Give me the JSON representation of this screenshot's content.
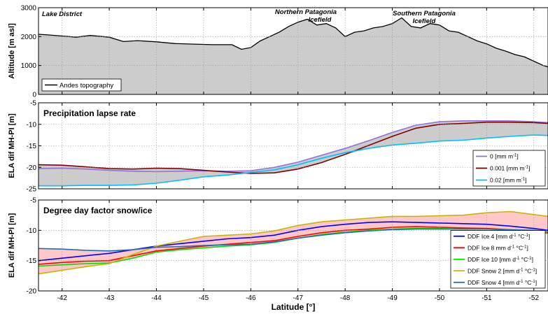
{
  "chart_data": [
    {
      "type": "area",
      "ylabel": "Altitude [m asl]",
      "xlim": [
        -41.5,
        -52.3
      ],
      "ylim": [
        0,
        3000
      ],
      "yticks": [
        "0",
        "1000",
        "2000",
        "3000"
      ],
      "grid": true,
      "legend_position": "bottom-left",
      "annotations": [
        "Lake District",
        "Northern Patagonia",
        "Icefield",
        "Southern Patagonia",
        "Icefield"
      ],
      "series": [
        {
          "name": "Andes topography",
          "color": "#000000",
          "fill": "#cccccc",
          "x": [
            -41.5,
            -41.7,
            -42.0,
            -42.3,
            -42.6,
            -43.0,
            -43.3,
            -43.6,
            -44.0,
            -44.4,
            -44.8,
            -45.2,
            -45.6,
            -45.8,
            -46.0,
            -46.2,
            -46.4,
            -46.6,
            -46.8,
            -47.0,
            -47.2,
            -47.4,
            -47.6,
            -47.8,
            -48.0,
            -48.2,
            -48.4,
            -48.6,
            -48.8,
            -49.0,
            -49.2,
            -49.4,
            -49.6,
            -49.8,
            -50.0,
            -50.2,
            -50.4,
            -50.6,
            -50.8,
            -51.0,
            -51.2,
            -51.4,
            -51.6,
            -51.8,
            -52.0,
            -52.2,
            -52.3
          ],
          "values": [
            2080,
            2060,
            2020,
            1980,
            2040,
            1980,
            1830,
            1860,
            1820,
            1760,
            1740,
            1720,
            1720,
            1560,
            1620,
            1850,
            2000,
            2150,
            2350,
            2500,
            2600,
            2400,
            2450,
            2300,
            2000,
            2150,
            2200,
            2300,
            2350,
            2450,
            2650,
            2350,
            2300,
            2450,
            2400,
            2200,
            2150,
            2000,
            1850,
            1750,
            1600,
            1500,
            1380,
            1300,
            1150,
            1000,
            950
          ]
        }
      ]
    },
    {
      "type": "line",
      "title": "Precipitation lapse rate",
      "ylabel": "ELA dif MH-PI [m]",
      "xlim": [
        -41.5,
        -52.3
      ],
      "ylim": [
        -25,
        -5
      ],
      "yticks": [
        "-25",
        "-20",
        "-15",
        "-10",
        "-5"
      ],
      "grid": true,
      "legend_position": "bottom-right",
      "envelope_fill": "#cccccc",
      "series": [
        {
          "name": "0 [mm m",
          "unit_sup": "-1",
          "unit_end": "]",
          "color": "#9370db",
          "x": [
            -41.5,
            -42.0,
            -42.5,
            -43.0,
            -43.5,
            -44.0,
            -44.5,
            -45.0,
            -45.5,
            -46.0,
            -46.5,
            -47.0,
            -47.5,
            -48.0,
            -48.5,
            -49.0,
            -49.5,
            -50.0,
            -50.5,
            -51.0,
            -51.5,
            -52.0,
            -52.3
          ],
          "values": [
            -20.3,
            -20.2,
            -20.4,
            -20.7,
            -20.9,
            -21.0,
            -20.9,
            -20.8,
            -20.9,
            -20.8,
            -20.0,
            -18.8,
            -17.2,
            -15.6,
            -13.8,
            -11.9,
            -10.2,
            -9.4,
            -9.2,
            -9.2,
            -9.2,
            -9.4,
            -9.6
          ]
        },
        {
          "name": "0.001 [mm m",
          "unit_sup": "-1",
          "unit_end": "]",
          "color": "#800000",
          "x": [
            -41.5,
            -42.0,
            -42.5,
            -43.0,
            -43.5,
            -44.0,
            -44.5,
            -45.0,
            -45.5,
            -46.0,
            -46.5,
            -47.0,
            -47.5,
            -48.0,
            -48.5,
            -49.0,
            -49.5,
            -50.0,
            -50.5,
            -51.0,
            -51.5,
            -52.0,
            -52.3
          ],
          "values": [
            -19.4,
            -19.5,
            -19.9,
            -20.3,
            -20.4,
            -20.2,
            -20.3,
            -20.7,
            -21.1,
            -21.4,
            -21.3,
            -20.4,
            -18.9,
            -17.0,
            -14.9,
            -12.8,
            -10.9,
            -10.0,
            -9.8,
            -9.5,
            -9.5,
            -9.6,
            -9.8
          ]
        },
        {
          "name": "0.02 [mm m",
          "unit_sup": "-1",
          "unit_end": "]",
          "color": "#00bfff",
          "x": [
            -41.5,
            -42.0,
            -42.5,
            -43.0,
            -43.5,
            -44.0,
            -44.5,
            -45.0,
            -45.5,
            -46.0,
            -46.5,
            -47.0,
            -47.5,
            -48.0,
            -48.5,
            -49.0,
            -49.5,
            -50.0,
            -50.5,
            -51.0,
            -51.5,
            -52.0,
            -52.3
          ],
          "values": [
            -24.3,
            -24.3,
            -24.2,
            -24.2,
            -24.1,
            -23.7,
            -23.0,
            -22.2,
            -21.8,
            -21.2,
            -20.6,
            -19.4,
            -17.9,
            -16.6,
            -15.6,
            -14.8,
            -14.4,
            -13.9,
            -13.7,
            -13.2,
            -12.8,
            -12.5,
            -12.6
          ]
        }
      ]
    },
    {
      "type": "line",
      "title": "Degree day factor snow/ice",
      "ylabel": "ELA dif MH-PI [m]",
      "xlabel": "Latitude [°]",
      "xlim": [
        -41.5,
        -52.3
      ],
      "ylim": [
        -20,
        -5
      ],
      "yticks": [
        "-20",
        "-15",
        "-10",
        "-5"
      ],
      "xticks": [
        -42,
        -43,
        -44,
        -45,
        -46,
        -47,
        -48,
        -49,
        -50,
        -51,
        -52
      ],
      "xtick_labels": [
        "-42",
        "-43",
        "-44",
        "-45",
        "-46",
        "-47",
        "-48",
        "-49",
        "-50",
        "-51",
        "-52"
      ],
      "grid": true,
      "legend_position": "bottom-right",
      "envelope_fill": "#ffc8c8",
      "series": [
        {
          "name": "DDF Ice 4 [mm d",
          "unit_sup": "-1",
          "unit_mid": " °C",
          "unit_sup2": "-1",
          "unit_end": "]",
          "color": "#0000ff",
          "x": [
            -41.5,
            -42.0,
            -42.5,
            -43.0,
            -43.5,
            -44.0,
            -44.5,
            -45.0,
            -45.5,
            -46.0,
            -46.5,
            -47.0,
            -47.5,
            -48.0,
            -48.5,
            -49.0,
            -49.5,
            -50.0,
            -50.5,
            -51.0,
            -51.5,
            -52.0,
            -52.3
          ],
          "values": [
            -15.0,
            -14.6,
            -14.2,
            -13.8,
            -13.2,
            -12.6,
            -12.2,
            -11.8,
            -11.4,
            -11.2,
            -10.8,
            -10.0,
            -9.4,
            -9.0,
            -8.7,
            -8.6,
            -8.7,
            -8.8,
            -8.9,
            -9.0,
            -9.3,
            -9.7,
            -10.0
          ]
        },
        {
          "name": "DDF Ice 8 mm d",
          "unit_sup": "-1",
          "unit_mid": " °C",
          "unit_sup2": "-1",
          "unit_end": "]",
          "color": "#ff0000",
          "x": [
            -41.5,
            -42.0,
            -42.5,
            -43.0,
            -43.5,
            -44.0,
            -44.5,
            -45.0,
            -45.5,
            -46.0,
            -46.5,
            -47.0,
            -47.5,
            -48.0,
            -48.5,
            -49.0,
            -49.5,
            -50.0,
            -50.5,
            -51.0,
            -51.5,
            -52.0,
            -52.3
          ],
          "values": [
            -15.6,
            -15.3,
            -15.1,
            -15.0,
            -14.2,
            -13.4,
            -13.0,
            -12.6,
            -12.3,
            -12.0,
            -11.7,
            -11.0,
            -10.4,
            -10.0,
            -9.8,
            -9.5,
            -9.4,
            -9.5,
            -9.6,
            -9.7,
            -9.9,
            -10.2,
            -10.4
          ]
        },
        {
          "name": "DDF Ice 10 [mm d",
          "unit_sup": "-1",
          "unit_mid": " °C",
          "unit_sup2": "-1",
          "unit_end": "]",
          "color": "#00dd00",
          "x": [
            -41.5,
            -42.0,
            -42.5,
            -43.0,
            -43.5,
            -44.0,
            -44.5,
            -45.0,
            -45.5,
            -46.0,
            -46.5,
            -47.0,
            -47.5,
            -48.0,
            -48.5,
            -49.0,
            -49.5,
            -50.0,
            -50.5,
            -51.0,
            -51.5,
            -52.0,
            -52.3
          ],
          "values": [
            -15.9,
            -15.7,
            -15.5,
            -15.4,
            -14.6,
            -13.6,
            -13.2,
            -12.9,
            -12.6,
            -12.4,
            -12.0,
            -11.3,
            -10.7,
            -10.3,
            -10.0,
            -9.8,
            -9.7,
            -9.7,
            -9.8,
            -9.8,
            -10.0,
            -10.3,
            -10.5
          ]
        },
        {
          "name": "DDF Snow 2 [mm d",
          "unit_sup": "-1",
          "unit_mid": " °C",
          "unit_sup2": "-1",
          "unit_end": "]",
          "color": "#c8b400",
          "x": [
            -41.5,
            -42.0,
            -42.5,
            -43.0,
            -43.5,
            -44.0,
            -44.5,
            -45.0,
            -45.5,
            -46.0,
            -46.5,
            -47.0,
            -47.5,
            -48.0,
            -48.5,
            -49.0,
            -49.5,
            -50.0,
            -50.5,
            -51.0,
            -51.5,
            -52.0,
            -52.3
          ],
          "values": [
            -17.2,
            -16.6,
            -16.0,
            -15.5,
            -14.0,
            -12.6,
            -11.8,
            -11.0,
            -10.8,
            -10.6,
            -10.1,
            -9.2,
            -8.6,
            -8.3,
            -8.0,
            -7.7,
            -7.7,
            -7.6,
            -7.5,
            -7.1,
            -6.9,
            -7.4,
            -7.7
          ]
        },
        {
          "name": "DDF Snow 4 [mm d",
          "unit_sup": "-1",
          "unit_mid": " °C",
          "unit_sup2": "-1",
          "unit_end": "]",
          "color": "#1e6eb4",
          "x": [
            -41.5,
            -42.0,
            -42.5,
            -43.0,
            -43.5,
            -44.0,
            -44.5,
            -45.0,
            -45.5,
            -46.0,
            -46.5,
            -47.0,
            -47.5,
            -48.0,
            -48.5,
            -49.0,
            -49.5,
            -50.0,
            -50.5,
            -51.0,
            -51.5,
            -52.0,
            -52.3
          ],
          "values": [
            -13.0,
            -13.1,
            -13.3,
            -13.4,
            -13.2,
            -12.8,
            -12.7,
            -12.5,
            -12.4,
            -12.3,
            -11.9,
            -11.3,
            -10.8,
            -10.4,
            -10.1,
            -9.9,
            -9.8,
            -9.8,
            -9.8,
            -9.8,
            -9.9,
            -10.0,
            -10.1
          ]
        }
      ]
    }
  ]
}
